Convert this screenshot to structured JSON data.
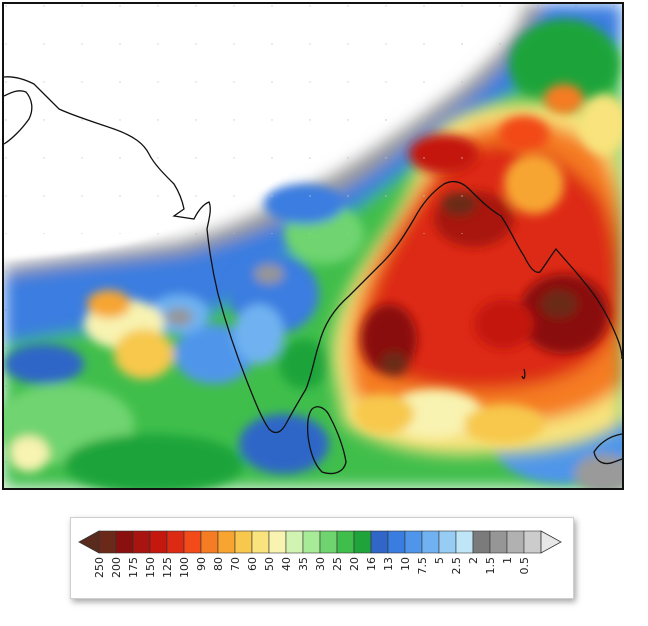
{
  "map": {
    "region": "Bay of Bengal / Indian subcontinent rainfall field",
    "ocean_color": "#ffffff"
  },
  "legend": {
    "labels": [
      "250",
      "200",
      "175",
      "150",
      "125",
      "100",
      "90",
      "80",
      "70",
      "60",
      "50",
      "40",
      "35",
      "30",
      "25",
      "20",
      "16",
      "13",
      "10",
      "7.5",
      "5",
      "2.5",
      "2",
      "1.5",
      "1",
      "0.5"
    ],
    "colors": [
      "#6b2a19",
      "#8a1010",
      "#a8140f",
      "#c4180f",
      "#dd2a14",
      "#f24a18",
      "#f57c22",
      "#f7a530",
      "#f7c84c",
      "#f8e37c",
      "#f8f3b0",
      "#d2f4b2",
      "#a7ea97",
      "#6fd46f",
      "#3fbe4b",
      "#1ea43b",
      "#2f66c7",
      "#3a7de0",
      "#4f96ea",
      "#70b2f1",
      "#97cdf5",
      "#bfe6f7",
      "#7b7b7b",
      "#969696",
      "#b1b1b1",
      "#cccccc"
    ],
    "left_arrow_color": "#5a2a1c",
    "right_arrow_color": "#e7e7e7"
  }
}
